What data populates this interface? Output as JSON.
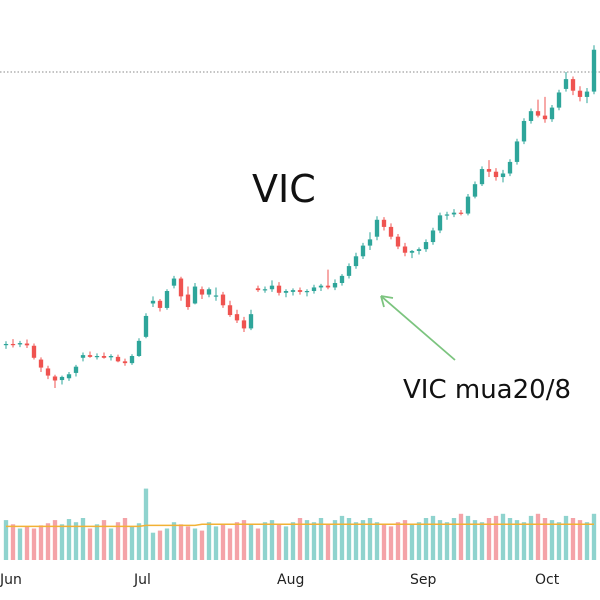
{
  "chart_data": {
    "type": "candlestick",
    "title": "VIC",
    "x_ticks": [
      "Jun",
      "Jul",
      "Aug",
      "Sep",
      "Oct"
    ],
    "annotation": {
      "text": "VIC mua20/8",
      "points_to_session": 37
    },
    "colors": {
      "up": "#2ea59a",
      "down": "#ef5350",
      "vol_up": "#8fd3ce",
      "vol_down": "#f4a3a8",
      "ma": "#f2b134",
      "grid": "#888888"
    },
    "price_range": [
      0,
      100
    ],
    "volume_range": [
      0,
      100
    ],
    "sessions": [
      {
        "o": 38.8,
        "h": 39.5,
        "l": 37.8,
        "c": 38.9
      },
      {
        "o": 38.9,
        "h": 40.0,
        "l": 38.1,
        "c": 38.7
      },
      {
        "o": 38.8,
        "h": 39.6,
        "l": 38.2,
        "c": 39.1
      },
      {
        "o": 39.0,
        "h": 39.9,
        "l": 38.0,
        "c": 38.6
      },
      {
        "o": 38.5,
        "h": 39.0,
        "l": 35.4,
        "c": 35.8
      },
      {
        "o": 35.4,
        "h": 35.9,
        "l": 32.6,
        "c": 33.6
      },
      {
        "o": 33.4,
        "h": 34.0,
        "l": 31.0,
        "c": 31.8
      },
      {
        "o": 31.6,
        "h": 32.0,
        "l": 29.0,
        "c": 30.7
      },
      {
        "o": 30.8,
        "h": 31.8,
        "l": 29.8,
        "c": 31.5
      },
      {
        "o": 31.2,
        "h": 32.6,
        "l": 30.6,
        "c": 32.1
      },
      {
        "o": 32.4,
        "h": 34.2,
        "l": 31.6,
        "c": 33.8
      },
      {
        "o": 35.8,
        "h": 37.0,
        "l": 35.0,
        "c": 36.4
      },
      {
        "o": 36.4,
        "h": 37.2,
        "l": 35.8,
        "c": 36.0
      },
      {
        "o": 36.0,
        "h": 36.8,
        "l": 35.4,
        "c": 36.2
      },
      {
        "o": 36.2,
        "h": 37.0,
        "l": 35.6,
        "c": 35.8
      },
      {
        "o": 35.9,
        "h": 36.6,
        "l": 35.2,
        "c": 36.2
      },
      {
        "o": 36.0,
        "h": 36.5,
        "l": 34.8,
        "c": 35.0
      },
      {
        "o": 35.0,
        "h": 35.6,
        "l": 34.0,
        "c": 34.6
      },
      {
        "o": 34.6,
        "h": 36.6,
        "l": 34.2,
        "c": 36.2
      },
      {
        "o": 36.2,
        "h": 40.2,
        "l": 36.0,
        "c": 39.6
      },
      {
        "o": 40.5,
        "h": 45.8,
        "l": 40.2,
        "c": 45.2
      },
      {
        "o": 48.0,
        "h": 49.6,
        "l": 47.2,
        "c": 48.6
      },
      {
        "o": 48.6,
        "h": 49.0,
        "l": 46.2,
        "c": 47.0
      },
      {
        "o": 47.0,
        "h": 51.2,
        "l": 46.6,
        "c": 50.8
      },
      {
        "o": 52.0,
        "h": 54.2,
        "l": 51.4,
        "c": 53.6
      },
      {
        "o": 53.6,
        "h": 54.0,
        "l": 48.6,
        "c": 49.6
      },
      {
        "o": 50.0,
        "h": 51.8,
        "l": 46.6,
        "c": 47.2
      },
      {
        "o": 48.0,
        "h": 52.6,
        "l": 47.8,
        "c": 51.8
      },
      {
        "o": 51.2,
        "h": 51.8,
        "l": 49.0,
        "c": 50.0
      },
      {
        "o": 50.0,
        "h": 51.6,
        "l": 49.4,
        "c": 51.2
      },
      {
        "o": 49.6,
        "h": 51.6,
        "l": 48.6,
        "c": 49.8
      },
      {
        "o": 50.0,
        "h": 50.6,
        "l": 47.0,
        "c": 47.6
      },
      {
        "o": 47.6,
        "h": 48.6,
        "l": 45.0,
        "c": 45.4
      },
      {
        "o": 45.6,
        "h": 46.6,
        "l": 43.6,
        "c": 44.2
      },
      {
        "o": 44.2,
        "h": 45.0,
        "l": 41.6,
        "c": 42.4
      },
      {
        "o": 42.4,
        "h": 46.6,
        "l": 42.0,
        "c": 45.6
      },
      {
        "o": 51.4,
        "h": 52.0,
        "l": 50.6,
        "c": 51.0
      },
      {
        "o": 51.0,
        "h": 51.8,
        "l": 50.4,
        "c": 51.2
      },
      {
        "o": 51.2,
        "h": 53.2,
        "l": 50.6,
        "c": 52.0
      },
      {
        "o": 52.0,
        "h": 52.8,
        "l": 49.8,
        "c": 50.4
      },
      {
        "o": 50.4,
        "h": 51.2,
        "l": 49.4,
        "c": 50.8
      },
      {
        "o": 50.6,
        "h": 51.4,
        "l": 49.8,
        "c": 51.0
      },
      {
        "o": 51.0,
        "h": 51.6,
        "l": 50.0,
        "c": 50.6
      },
      {
        "o": 50.6,
        "h": 51.2,
        "l": 49.6,
        "c": 50.8
      },
      {
        "o": 50.8,
        "h": 52.2,
        "l": 50.2,
        "c": 51.6
      },
      {
        "o": 51.6,
        "h": 52.4,
        "l": 50.8,
        "c": 52.0
      },
      {
        "o": 52.0,
        "h": 55.6,
        "l": 51.2,
        "c": 51.6
      },
      {
        "o": 51.6,
        "h": 53.4,
        "l": 51.0,
        "c": 52.6
      },
      {
        "o": 52.6,
        "h": 54.6,
        "l": 52.0,
        "c": 54.2
      },
      {
        "o": 54.2,
        "h": 57.0,
        "l": 53.6,
        "c": 56.4
      },
      {
        "o": 56.4,
        "h": 59.4,
        "l": 55.8,
        "c": 58.6
      },
      {
        "o": 58.6,
        "h": 61.6,
        "l": 58.0,
        "c": 61.0
      },
      {
        "o": 61.0,
        "h": 64.0,
        "l": 60.0,
        "c": 62.4
      },
      {
        "o": 63.0,
        "h": 67.6,
        "l": 62.2,
        "c": 66.8
      },
      {
        "o": 66.8,
        "h": 67.4,
        "l": 64.4,
        "c": 65.2
      },
      {
        "o": 65.2,
        "h": 66.0,
        "l": 62.4,
        "c": 63.0
      },
      {
        "o": 63.0,
        "h": 63.6,
        "l": 60.2,
        "c": 60.8
      },
      {
        "o": 60.8,
        "h": 61.6,
        "l": 58.6,
        "c": 59.4
      },
      {
        "o": 59.4,
        "h": 60.0,
        "l": 58.2,
        "c": 59.8
      },
      {
        "o": 59.8,
        "h": 60.6,
        "l": 59.0,
        "c": 60.2
      },
      {
        "o": 60.2,
        "h": 62.4,
        "l": 59.6,
        "c": 61.8
      },
      {
        "o": 61.8,
        "h": 65.0,
        "l": 61.2,
        "c": 64.4
      },
      {
        "o": 64.4,
        "h": 68.4,
        "l": 63.8,
        "c": 67.8
      },
      {
        "o": 67.8,
        "h": 68.6,
        "l": 66.8,
        "c": 68.0
      },
      {
        "o": 68.0,
        "h": 69.2,
        "l": 67.4,
        "c": 68.4
      },
      {
        "o": 68.4,
        "h": 69.0,
        "l": 67.8,
        "c": 68.2
      },
      {
        "o": 68.2,
        "h": 72.6,
        "l": 67.8,
        "c": 72.0
      },
      {
        "o": 72.0,
        "h": 75.4,
        "l": 71.6,
        "c": 74.8
      },
      {
        "o": 74.8,
        "h": 78.8,
        "l": 74.4,
        "c": 78.2
      },
      {
        "o": 78.2,
        "h": 80.2,
        "l": 76.4,
        "c": 77.6
      },
      {
        "o": 77.6,
        "h": 78.4,
        "l": 75.6,
        "c": 76.4
      },
      {
        "o": 76.4,
        "h": 78.0,
        "l": 75.2,
        "c": 77.2
      },
      {
        "o": 77.2,
        "h": 80.4,
        "l": 76.6,
        "c": 79.8
      },
      {
        "o": 79.8,
        "h": 85.0,
        "l": 79.2,
        "c": 84.4
      },
      {
        "o": 84.4,
        "h": 89.6,
        "l": 83.8,
        "c": 89.0
      },
      {
        "o": 89.0,
        "h": 91.8,
        "l": 88.4,
        "c": 91.2
      },
      {
        "o": 91.2,
        "h": 93.8,
        "l": 89.8,
        "c": 90.2
      },
      {
        "o": 90.2,
        "h": 94.4,
        "l": 88.6,
        "c": 89.4
      },
      {
        "o": 89.4,
        "h": 92.6,
        "l": 88.8,
        "c": 92.0
      },
      {
        "o": 92.0,
        "h": 96.0,
        "l": 91.4,
        "c": 95.4
      },
      {
        "o": 96.2,
        "h": 100.0,
        "l": 95.6,
        "c": 98.4
      },
      {
        "o": 98.4,
        "h": 99.0,
        "l": 94.8,
        "c": 95.8
      },
      {
        "o": 95.8,
        "h": 96.8,
        "l": 93.4,
        "c": 94.4
      },
      {
        "o": 94.4,
        "h": 96.4,
        "l": 93.0,
        "c": 95.6
      },
      {
        "o": 95.6,
        "h": 106.0,
        "l": 95.0,
        "c": 105.0
      }
    ],
    "volume": [
      38,
      34,
      30,
      32,
      30,
      33,
      35,
      38,
      34,
      39,
      36,
      40,
      30,
      34,
      38,
      30,
      36,
      40,
      32,
      35,
      68,
      26,
      28,
      30,
      36,
      34,
      32,
      30,
      28,
      36,
      32,
      34,
      30,
      36,
      38,
      34,
      30,
      36,
      38,
      34,
      32,
      36,
      40,
      38,
      36,
      40,
      34,
      38,
      42,
      40,
      36,
      38,
      40,
      36,
      34,
      32,
      36,
      38,
      34,
      36,
      40,
      42,
      38,
      36,
      40,
      44,
      42,
      38,
      36,
      40,
      42,
      44,
      40,
      38,
      36,
      42,
      44,
      40,
      38,
      36,
      42,
      40,
      38,
      36,
      44
    ],
    "ma": [
      32,
      32,
      32,
      32,
      32,
      32,
      32,
      32,
      32,
      32,
      32,
      32,
      32,
      32,
      32,
      32,
      32,
      32,
      32,
      32,
      33,
      33,
      33,
      33,
      33,
      33,
      33,
      33,
      34,
      34,
      34,
      34,
      34,
      34,
      34,
      34,
      34,
      34,
      34,
      34,
      34,
      34,
      34,
      34,
      34,
      34,
      34,
      34,
      34,
      34,
      34,
      34,
      34,
      34,
      34,
      34,
      34,
      34,
      34,
      34,
      34,
      34,
      34,
      34,
      34,
      34,
      34,
      34,
      34,
      34,
      34,
      34,
      34,
      34,
      34,
      34,
      34,
      34,
      34,
      34,
      34,
      34,
      34,
      34,
      34
    ]
  }
}
